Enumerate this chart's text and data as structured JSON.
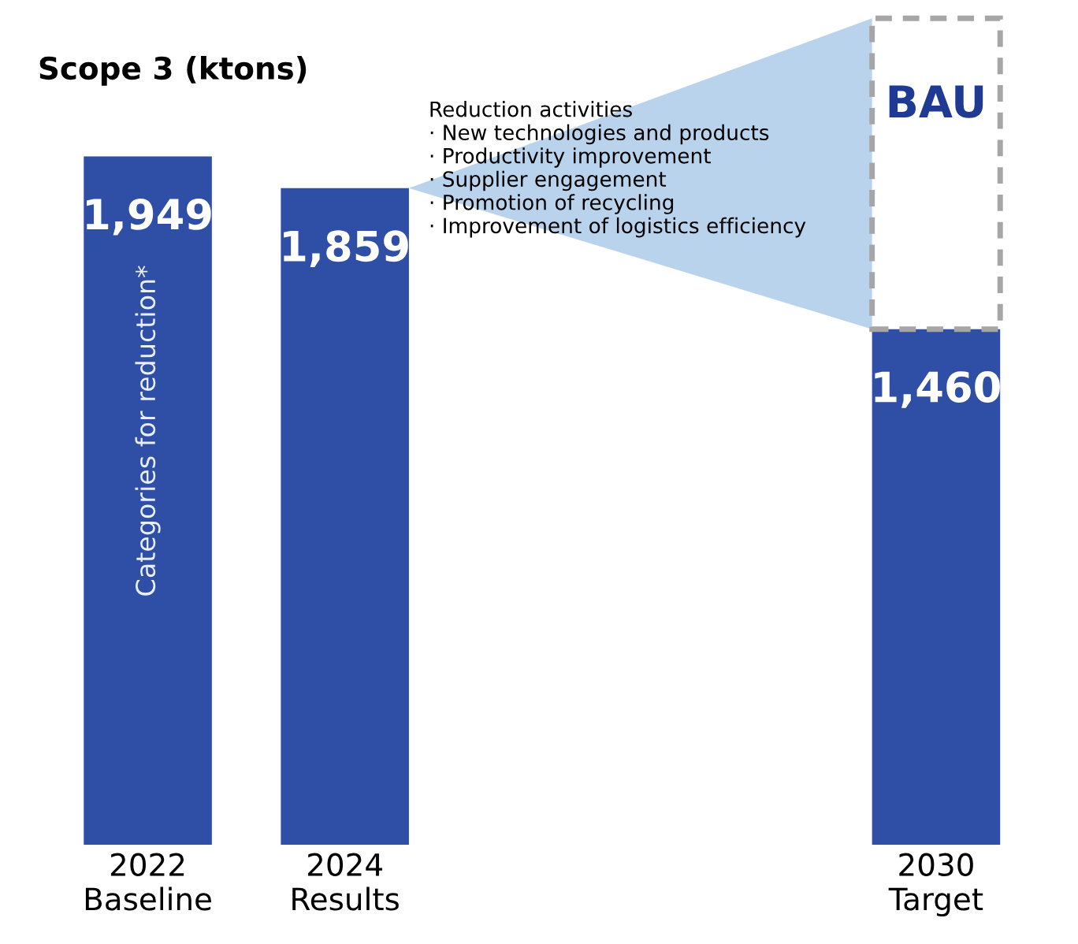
{
  "chart_data": {
    "type": "bar",
    "title": "Scope 3 (ktons)",
    "categories": [
      "2022\nBaseline",
      "2024\nResults",
      null,
      null,
      "2030\nTarget"
    ],
    "stacked": true,
    "series": [
      {
        "color": "#2f4fa6",
        "values": [
          1949,
          1859,
          null,
          null,
          1460
        ],
        "value_labels": [
          "1,949",
          "1,859",
          null,
          null,
          "1,460"
        ]
      },
      {
        "name": "BAU",
        "color": "#a6a6a6",
        "line_style": "dashed",
        "values": [
          null,
          null,
          null,
          null,
          880
        ]
      }
    ],
    "grid": false,
    "annotations": [
      "Reduction activities\n· New technologies and products\n· Productivity improvement\n· Supplier engagement\n· Promotion of recycling\n· Improvement of logistics efficiency",
      "Categories for reduction*"
    ]
  }
}
